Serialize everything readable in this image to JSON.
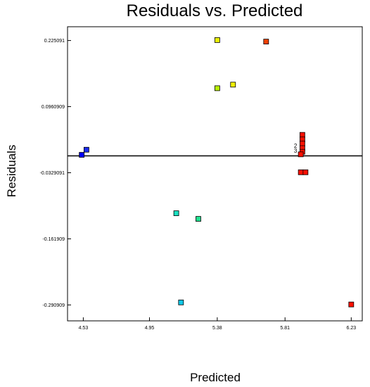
{
  "chart_data": {
    "type": "scatter",
    "title": "Residuals vs. Predicted",
    "xlabel": "Predicted",
    "ylabel": "Residuals",
    "xlim": [
      4.43,
      6.3
    ],
    "ylim": [
      -0.322,
      0.252
    ],
    "x_ticks": [
      "4.53",
      "4.95",
      "5.38",
      "5.81",
      "6.23"
    ],
    "y_ticks": [
      "0.225091",
      "0.0960909",
      "-0.0329091",
      "-0.161909",
      "-0.290909"
    ],
    "reference_line_y": 0,
    "grid": false,
    "points": [
      {
        "x": 4.52,
        "y": 0.002,
        "color": "#0000ff"
      },
      {
        "x": 4.55,
        "y": 0.012,
        "color": "#1a2cf0"
      },
      {
        "x": 5.12,
        "y": -0.112,
        "color": "#1ae0c0"
      },
      {
        "x": 5.15,
        "y": -0.286,
        "color": "#10c8e8"
      },
      {
        "x": 5.26,
        "y": -0.123,
        "color": "#20e090"
      },
      {
        "x": 5.38,
        "y": 0.226,
        "color": "#e8f000"
      },
      {
        "x": 5.38,
        "y": 0.132,
        "color": "#b8f000"
      },
      {
        "x": 5.48,
        "y": 0.139,
        "color": "#f0f000"
      },
      {
        "x": 5.69,
        "y": 0.223,
        "color": "#f04000"
      },
      {
        "x": 5.92,
        "y": 0.041,
        "color": "#ff1000"
      },
      {
        "x": 5.92,
        "y": 0.032,
        "color": "#ff1000"
      },
      {
        "x": 5.92,
        "y": 0.024,
        "color": "#ff1000"
      },
      {
        "x": 5.92,
        "y": 0.015,
        "color": "#ff1000"
      },
      {
        "x": 5.92,
        "y": 0.008,
        "color": "#ff1000"
      },
      {
        "x": 5.91,
        "y": 0.003,
        "color": "#ff1000"
      },
      {
        "x": 5.91,
        "y": -0.032,
        "color": "#ff1000"
      },
      {
        "x": 5.94,
        "y": -0.032,
        "color": "#ff1000"
      },
      {
        "x": 6.23,
        "y": -0.29,
        "color": "#ff1000"
      }
    ],
    "point_labels": [
      {
        "text": "2",
        "x": 5.9,
        "y": 0.02
      },
      {
        "text": "3",
        "x": 5.9,
        "y": 0.01
      }
    ]
  }
}
